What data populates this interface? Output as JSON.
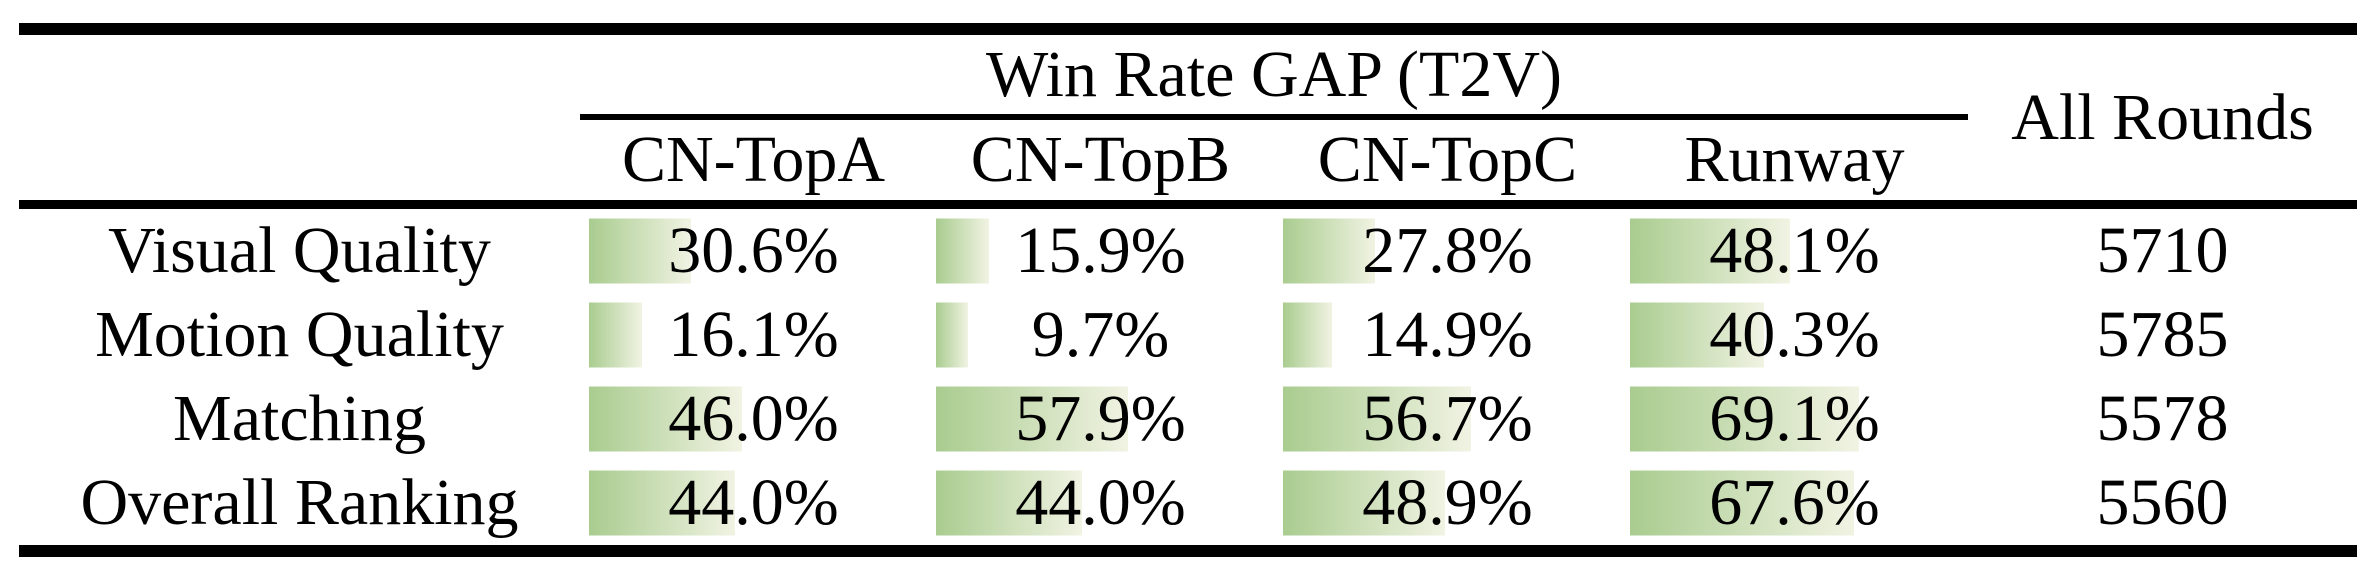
{
  "table": {
    "title": "Win Rate GAP (T2V)",
    "all_rounds_header": "All Rounds",
    "columns": [
      "CN-TopA",
      "CN-TopB",
      "CN-TopC",
      "Runway"
    ],
    "rows": [
      {
        "label": "Visual Quality",
        "cells": [
          {
            "text": "30.6%",
            "pct": 30.6
          },
          {
            "text": "15.9%",
            "pct": 15.9
          },
          {
            "text": "27.8%",
            "pct": 27.8
          },
          {
            "text": "48.1%",
            "pct": 48.1
          }
        ],
        "all_rounds": "5710"
      },
      {
        "label": "Motion Quality",
        "cells": [
          {
            "text": "16.1%",
            "pct": 16.1
          },
          {
            "text": "9.7%",
            "pct": 9.7
          },
          {
            "text": "14.9%",
            "pct": 14.9
          },
          {
            "text": "40.3%",
            "pct": 40.3
          }
        ],
        "all_rounds": "5785"
      },
      {
        "label": "Matching",
        "cells": [
          {
            "text": "46.0%",
            "pct": 46.0
          },
          {
            "text": "57.9%",
            "pct": 57.9
          },
          {
            "text": "56.7%",
            "pct": 56.7
          },
          {
            "text": "69.1%",
            "pct": 69.1
          }
        ],
        "all_rounds": "5578"
      },
      {
        "label": "Overall Ranking",
        "cells": [
          {
            "text": "44.0%",
            "pct": 44.0
          },
          {
            "text": "44.0%",
            "pct": 44.0
          },
          {
            "text": "48.9%",
            "pct": 48.9
          },
          {
            "text": "67.6%",
            "pct": 67.6
          }
        ],
        "all_rounds": "5560"
      }
    ],
    "bar_style": {
      "color_start": "#a9cc8f",
      "color_end": "#f1f3e3"
    },
    "rule_color": "#000000"
  }
}
